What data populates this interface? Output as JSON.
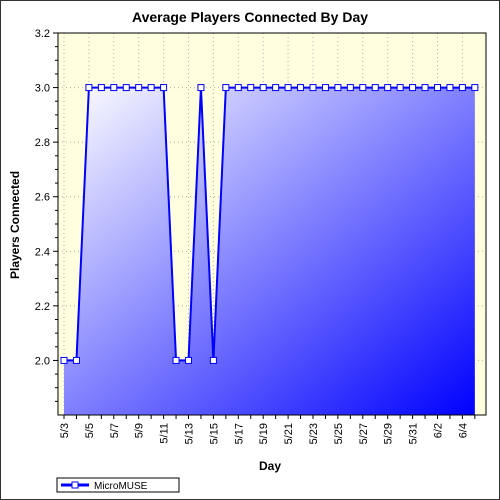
{
  "chart_data": {
    "type": "area",
    "title": "Average Players Connected By Day",
    "xlabel": "Day",
    "ylabel": "Players Connected",
    "ylim": [
      1.8,
      3.2
    ],
    "yticks": [
      "2.0",
      "2.2",
      "2.4",
      "2.6",
      "2.8",
      "3.0",
      "3.2"
    ],
    "x": [
      "5/3",
      "5/4",
      "5/5",
      "5/6",
      "5/7",
      "5/8",
      "5/9",
      "5/10",
      "5/11",
      "5/12",
      "5/13",
      "5/14",
      "5/15",
      "5/16",
      "5/17",
      "5/18",
      "5/19",
      "5/20",
      "5/21",
      "5/22",
      "5/23",
      "5/24",
      "5/25",
      "5/26",
      "5/27",
      "5/28",
      "5/29",
      "5/30",
      "5/31",
      "6/1",
      "6/2",
      "6/3",
      "6/4",
      "6/5"
    ],
    "xtick_labels": [
      "5/3",
      "5/5",
      "5/7",
      "5/9",
      "5/11",
      "5/13",
      "5/15",
      "5/17",
      "5/19",
      "5/21",
      "5/23",
      "5/25",
      "5/27",
      "5/29",
      "5/31",
      "6/2",
      "6/4"
    ],
    "series": [
      {
        "name": "MicroMUSE",
        "values": [
          2.0,
          2.0,
          3.0,
          3.0,
          3.0,
          3.0,
          3.0,
          3.0,
          3.0,
          2.0,
          2.0,
          3.0,
          2.0,
          3.0,
          3.0,
          3.0,
          3.0,
          3.0,
          3.0,
          3.0,
          3.0,
          3.0,
          3.0,
          3.0,
          3.0,
          3.0,
          3.0,
          3.0,
          3.0,
          3.0,
          3.0,
          3.0,
          3.0,
          3.0
        ]
      }
    ],
    "grid": true,
    "legend": "bottom-left",
    "colors": {
      "line": "#0000ff",
      "fill_light": "#ffffff",
      "fill_dark": "#0000ff",
      "plot_background": "#ffffe0",
      "grid": "#b0b0b0"
    }
  }
}
